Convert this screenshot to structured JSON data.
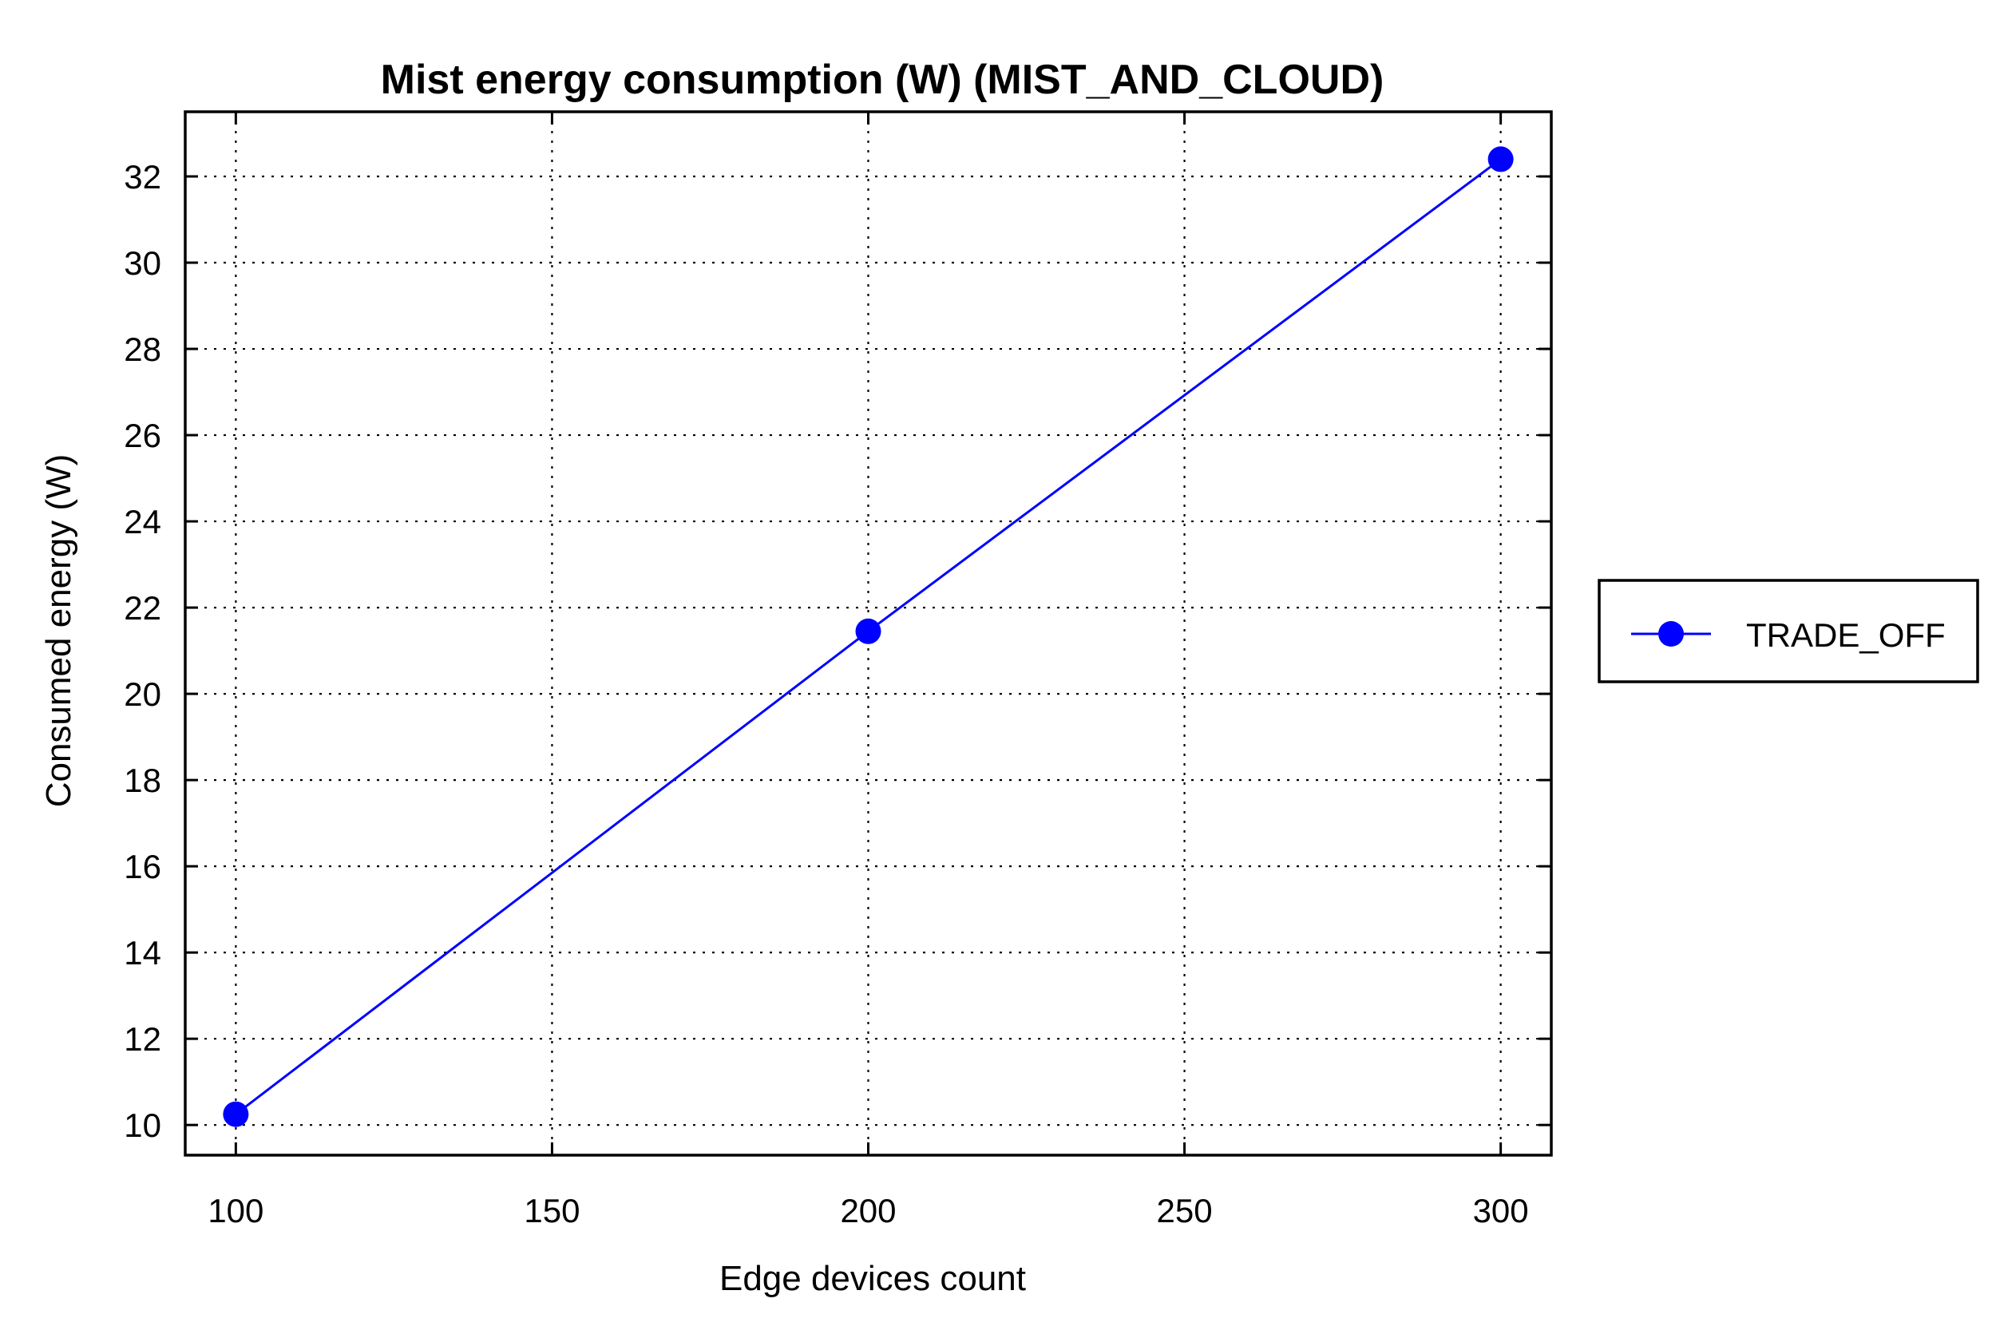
{
  "chart_data": {
    "type": "line",
    "title": "Mist energy consumption (W) (MIST_AND_CLOUD)",
    "xlabel": "Edge devices count",
    "ylabel": "Consumed energy (W)",
    "x": [
      100,
      200,
      300
    ],
    "xlim": [
      92,
      308
    ],
    "ylim": [
      9.3,
      33.5
    ],
    "xticks": [
      100,
      150,
      200,
      250,
      300
    ],
    "yticks": [
      10,
      12,
      14,
      16,
      18,
      20,
      22,
      24,
      26,
      28,
      30,
      32
    ],
    "grid": true,
    "legend_position": "outside-right",
    "series": [
      {
        "name": "TRADE_OFF",
        "color": "#0000ff",
        "marker": "circle",
        "values": [
          10.25,
          21.45,
          32.4
        ]
      }
    ]
  }
}
